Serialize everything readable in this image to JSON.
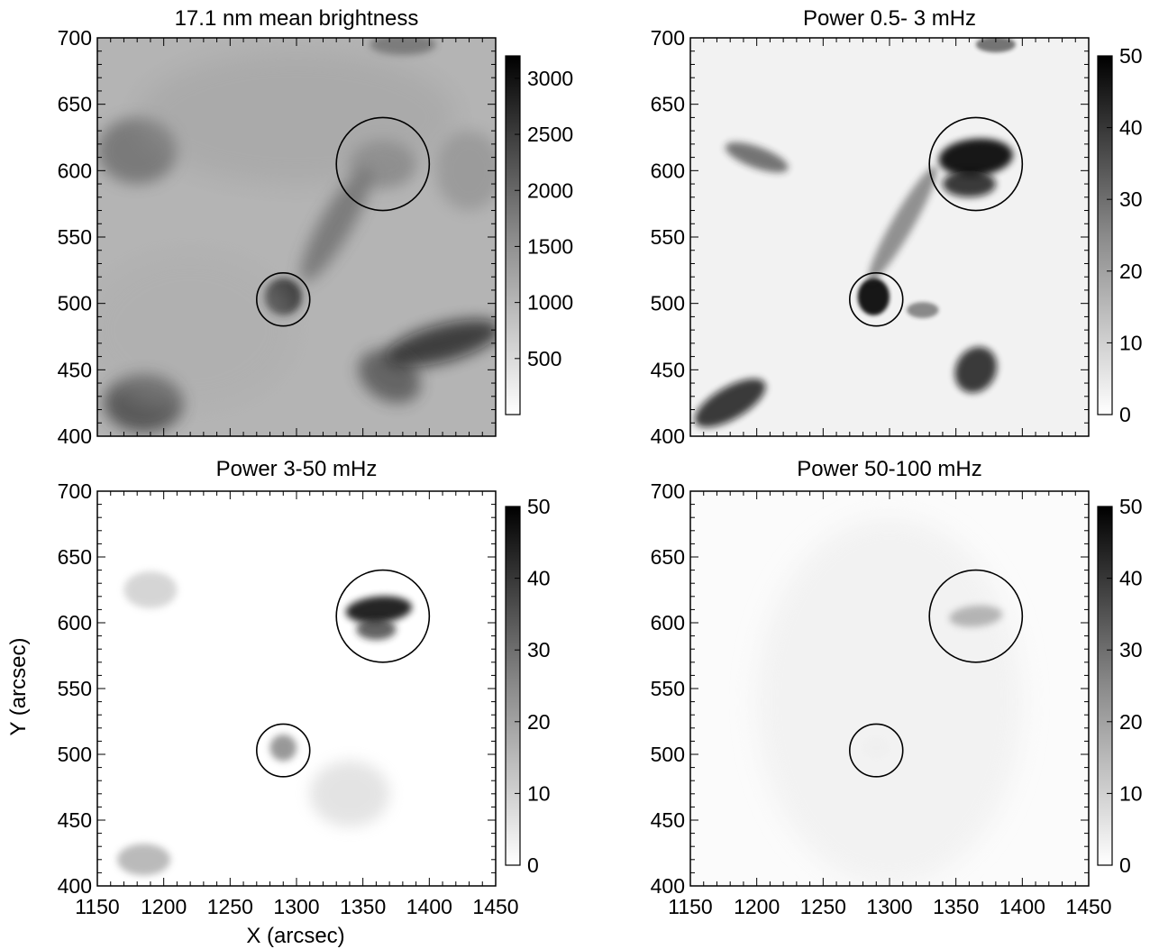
{
  "xlabel": "X (arcsec)",
  "ylabel": "Y (arcsec)",
  "chart_data": [
    {
      "type": "heatmap",
      "title": "17.1 nm mean brightness",
      "xlim": [
        1150,
        1450
      ],
      "ylim": [
        400,
        700
      ],
      "xticks": [
        1150,
        1200,
        1250,
        1300,
        1350,
        1400,
        1450
      ],
      "yticks": [
        400,
        450,
        500,
        550,
        600,
        650,
        700
      ],
      "colorbar": {
        "range": [
          0,
          3200
        ],
        "ticks": [
          500,
          1000,
          1500,
          2000,
          2500,
          3000
        ]
      },
      "circles": [
        {
          "x": 1365,
          "y": 605,
          "r": 35
        },
        {
          "x": 1290,
          "y": 503,
          "r": 20
        }
      ],
      "background": "medium"
    },
    {
      "type": "heatmap",
      "title": "Power 0.5- 3 mHz",
      "xlim": [
        1150,
        1450
      ],
      "ylim": [
        400,
        700
      ],
      "xticks": [
        1150,
        1200,
        1250,
        1300,
        1350,
        1400,
        1450
      ],
      "yticks": [
        400,
        450,
        500,
        550,
        600,
        650,
        700
      ],
      "colorbar": {
        "range": [
          0,
          50
        ],
        "ticks": [
          0,
          10,
          20,
          30,
          40,
          50
        ]
      },
      "circles": [
        {
          "x": 1365,
          "y": 605,
          "r": 35
        },
        {
          "x": 1290,
          "y": 503,
          "r": 20
        }
      ],
      "background": "light"
    },
    {
      "type": "heatmap",
      "title": "Power  3-50 mHz",
      "xlim": [
        1150,
        1450
      ],
      "ylim": [
        400,
        700
      ],
      "xticks": [
        1150,
        1200,
        1250,
        1300,
        1350,
        1400,
        1450
      ],
      "yticks": [
        400,
        450,
        500,
        550,
        600,
        650,
        700
      ],
      "colorbar": {
        "range": [
          0,
          50
        ],
        "ticks": [
          0,
          10,
          20,
          30,
          40,
          50
        ]
      },
      "circles": [
        {
          "x": 1365,
          "y": 605,
          "r": 35
        },
        {
          "x": 1290,
          "y": 503,
          "r": 20
        }
      ],
      "background": "white"
    },
    {
      "type": "heatmap",
      "title": "Power 50-100 mHz",
      "xlim": [
        1150,
        1450
      ],
      "ylim": [
        400,
        700
      ],
      "xticks": [
        1150,
        1200,
        1250,
        1300,
        1350,
        1400,
        1450
      ],
      "yticks": [
        400,
        450,
        500,
        550,
        600,
        650,
        700
      ],
      "colorbar": {
        "range": [
          0,
          50
        ],
        "ticks": [
          0,
          10,
          20,
          30,
          40,
          50
        ]
      },
      "circles": [
        {
          "x": 1365,
          "y": 605,
          "r": 35
        },
        {
          "x": 1290,
          "y": 503,
          "r": 20
        }
      ],
      "background": "near-white"
    }
  ]
}
